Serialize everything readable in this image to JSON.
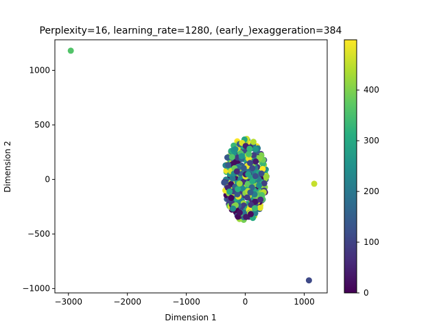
{
  "chart_data": {
    "type": "scatter",
    "title": "Perplexity=16, learning_rate=1280, (early_)exaggeration=384",
    "xlabel": "Dimension 1",
    "ylabel": "Dimension 2",
    "xlim": [
      -3230,
      1390
    ],
    "ylim": [
      -1040,
      1280
    ],
    "xticks": [
      -3000,
      -2000,
      -1000,
      0,
      1000
    ],
    "xtick_labels": [
      "−3000",
      "−2000",
      "−1000",
      "0",
      "1000"
    ],
    "yticks": [
      -1000,
      -500,
      0,
      500,
      1000
    ],
    "ytick_labels": [
      "−1000",
      "−500",
      "0",
      "500",
      "1000"
    ],
    "grid": false,
    "colormap": "viridis",
    "colorbar": {
      "range": [
        0,
        499
      ],
      "ticks": [
        0,
        100,
        200,
        300,
        400
      ],
      "tick_labels": [
        "0",
        "100",
        "200",
        "300",
        "400"
      ]
    },
    "outliers": [
      {
        "x": -2960,
        "y": 1180,
        "c": 360
      },
      {
        "x": 1170,
        "y": -40,
        "c": 455
      },
      {
        "x": 1080,
        "y": -925,
        "c": 110
      }
    ],
    "cluster": {
      "center": [
        0,
        0
      ],
      "semi_axis_x": 380,
      "semi_axis_y": 400,
      "n_points": 497,
      "color_range": [
        0,
        499
      ]
    }
  }
}
